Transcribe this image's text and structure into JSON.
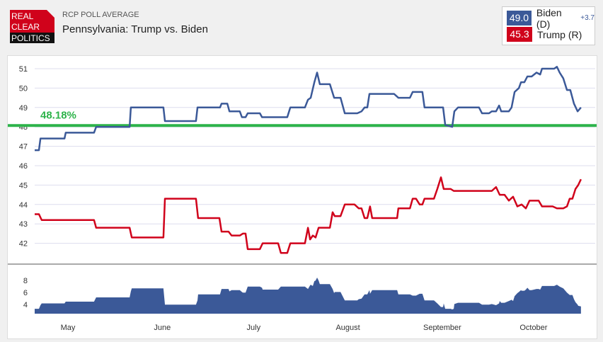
{
  "header": {
    "logo_text": [
      "REAL",
      "CLEAR",
      "POLITICS"
    ],
    "subtitle": "RCP POLL AVERAGE",
    "title": "Pennsylvania: Trump vs. Biden"
  },
  "legend": [
    {
      "value": "49.0",
      "name": "Biden (D)",
      "change": "+3.7",
      "color": "#3b5998"
    },
    {
      "value": "45.3",
      "name": "Trump (R)",
      "change": "",
      "color": "#d0021b"
    }
  ],
  "chart_data": {
    "type": "line",
    "title": "Pennsylvania: Trump vs. Biden",
    "x_unit": "days since April 1",
    "xlim": [
      20,
      204
    ],
    "ylim": [
      41.3,
      51.4
    ],
    "yticks": [
      42,
      43,
      44,
      45,
      46,
      47,
      48,
      49,
      50,
      51
    ],
    "month_ticks": [
      {
        "label": "May",
        "day": 30
      },
      {
        "label": "June",
        "day": 61
      },
      {
        "label": "July",
        "day": 91
      },
      {
        "label": "August",
        "day": 122
      },
      {
        "label": "September",
        "day": 153
      },
      {
        "label": "October",
        "day": 183
      }
    ],
    "reference_line": {
      "value": 48.18,
      "label": "48.18%",
      "color": "#2db34a"
    },
    "series": [
      {
        "name": "Biden (D)",
        "color": "#3b5998",
        "points": [
          [
            20,
            46.8
          ],
          [
            21.4,
            46.8
          ],
          [
            21.9,
            47.4
          ],
          [
            29.8,
            47.4
          ],
          [
            30.2,
            47.7
          ],
          [
            39.5,
            47.7
          ],
          [
            40.2,
            48.0
          ],
          [
            51.2,
            48.0
          ],
          [
            51.6,
            49.0
          ],
          [
            62.3,
            49.0
          ],
          [
            62.8,
            48.3
          ],
          [
            73,
            48.3
          ],
          [
            73.5,
            49.0
          ],
          [
            80.9,
            49.0
          ],
          [
            81.4,
            49.2
          ],
          [
            83.3,
            49.2
          ],
          [
            84,
            48.8
          ],
          [
            87.4,
            48.8
          ],
          [
            88.1,
            48.5
          ],
          [
            89.3,
            48.5
          ],
          [
            90,
            48.7
          ],
          [
            94,
            48.7
          ],
          [
            94.7,
            48.5
          ],
          [
            103,
            48.5
          ],
          [
            104,
            49.0
          ],
          [
            108.8,
            49.0
          ],
          [
            109.8,
            49.4
          ],
          [
            110.7,
            49.5
          ],
          [
            111.9,
            50.3
          ],
          [
            112.8,
            50.8
          ],
          [
            113.7,
            50.2
          ],
          [
            117,
            50.2
          ],
          [
            118.4,
            49.5
          ],
          [
            120.5,
            49.5
          ],
          [
            121.9,
            48.7
          ],
          [
            126,
            48.7
          ],
          [
            127.4,
            48.8
          ],
          [
            128.4,
            49.0
          ],
          [
            129.3,
            49.0
          ],
          [
            130,
            49.7
          ],
          [
            138.1,
            49.7
          ],
          [
            139.5,
            49.5
          ],
          [
            143.3,
            49.5
          ],
          [
            144.2,
            49.8
          ],
          [
            147.4,
            49.8
          ],
          [
            148.1,
            49.0
          ],
          [
            154.2,
            49.0
          ],
          [
            154.9,
            48.1
          ],
          [
            157.2,
            48.0
          ],
          [
            157.9,
            48.8
          ],
          [
            159.1,
            49.0
          ],
          [
            166,
            49.0
          ],
          [
            167,
            48.7
          ],
          [
            169.3,
            48.7
          ],
          [
            170.2,
            48.8
          ],
          [
            171.6,
            48.8
          ],
          [
            172.6,
            49.1
          ],
          [
            173.3,
            48.8
          ],
          [
            175.8,
            48.8
          ],
          [
            176.7,
            49.0
          ],
          [
            177.7,
            49.8
          ],
          [
            179.1,
            50.0
          ],
          [
            179.8,
            50.3
          ],
          [
            180.9,
            50.3
          ],
          [
            181.9,
            50.6
          ],
          [
            183.3,
            50.6
          ],
          [
            184.9,
            50.8
          ],
          [
            186.1,
            50.7
          ],
          [
            186.7,
            51.0
          ],
          [
            190.7,
            51.0
          ],
          [
            191.6,
            51.1
          ],
          [
            192.5,
            50.8
          ],
          [
            193.7,
            50.5
          ],
          [
            194.9,
            49.9
          ],
          [
            196,
            49.9
          ],
          [
            197.2,
            49.2
          ],
          [
            198.4,
            48.8
          ],
          [
            199.5,
            49.0
          ]
        ]
      },
      {
        "name": "Trump (R)",
        "color": "#d0021b",
        "points": [
          [
            20,
            43.5
          ],
          [
            21.4,
            43.5
          ],
          [
            22.3,
            43.2
          ],
          [
            39.5,
            43.2
          ],
          [
            40.2,
            42.8
          ],
          [
            51.2,
            42.8
          ],
          [
            51.9,
            42.3
          ],
          [
            62.3,
            42.3
          ],
          [
            62.8,
            44.3
          ],
          [
            73,
            44.3
          ],
          [
            73.7,
            43.3
          ],
          [
            80.7,
            43.3
          ],
          [
            81.4,
            42.6
          ],
          [
            83.7,
            42.6
          ],
          [
            84.7,
            42.4
          ],
          [
            87.4,
            42.4
          ],
          [
            88.4,
            42.5
          ],
          [
            89.3,
            42.5
          ],
          [
            90,
            41.7
          ],
          [
            94,
            41.7
          ],
          [
            94.9,
            42.0
          ],
          [
            100,
            42.0
          ],
          [
            100.9,
            41.5
          ],
          [
            103,
            41.5
          ],
          [
            104,
            42.0
          ],
          [
            108.8,
            42.0
          ],
          [
            109.8,
            42.8
          ],
          [
            110.5,
            42.2
          ],
          [
            111.4,
            42.4
          ],
          [
            112.3,
            42.3
          ],
          [
            113.3,
            42.8
          ],
          [
            117,
            42.8
          ],
          [
            117.9,
            43.6
          ],
          [
            118.6,
            43.4
          ],
          [
            120.5,
            43.4
          ],
          [
            121.9,
            44.0
          ],
          [
            125.1,
            44.0
          ],
          [
            126.5,
            43.8
          ],
          [
            127.4,
            43.8
          ],
          [
            128.4,
            43.3
          ],
          [
            129.3,
            43.3
          ],
          [
            130.2,
            43.9
          ],
          [
            130.9,
            43.3
          ],
          [
            139.1,
            43.3
          ],
          [
            139.5,
            43.8
          ],
          [
            143.3,
            43.8
          ],
          [
            144.2,
            44.3
          ],
          [
            145.3,
            44.3
          ],
          [
            146.5,
            44.0
          ],
          [
            147.4,
            44.0
          ],
          [
            148.1,
            44.3
          ],
          [
            151.2,
            44.3
          ],
          [
            152.3,
            44.8
          ],
          [
            153.5,
            45.4
          ],
          [
            154.4,
            44.8
          ],
          [
            156.7,
            44.8
          ],
          [
            157.7,
            44.7
          ],
          [
            170.2,
            44.7
          ],
          [
            171.6,
            44.9
          ],
          [
            172.8,
            44.5
          ],
          [
            174.4,
            44.5
          ],
          [
            175.8,
            44.2
          ],
          [
            177.2,
            44.4
          ],
          [
            178.6,
            43.9
          ],
          [
            180,
            44.0
          ],
          [
            181.4,
            43.8
          ],
          [
            182.6,
            44.2
          ],
          [
            185.6,
            44.2
          ],
          [
            186.7,
            43.9
          ],
          [
            190.2,
            43.9
          ],
          [
            191.6,
            43.8
          ],
          [
            193.7,
            43.8
          ],
          [
            194.9,
            43.9
          ],
          [
            195.8,
            44.3
          ],
          [
            196.7,
            44.3
          ],
          [
            197.7,
            44.8
          ],
          [
            198.6,
            45.0
          ],
          [
            199.5,
            45.3
          ]
        ]
      }
    ],
    "spread_panel": {
      "type": "area",
      "series": "Biden (D) minus Trump (R)",
      "color": "#3b5998",
      "yticks": [
        4,
        6,
        8
      ],
      "ylim": [
        2.3,
        9.2
      ]
    }
  }
}
